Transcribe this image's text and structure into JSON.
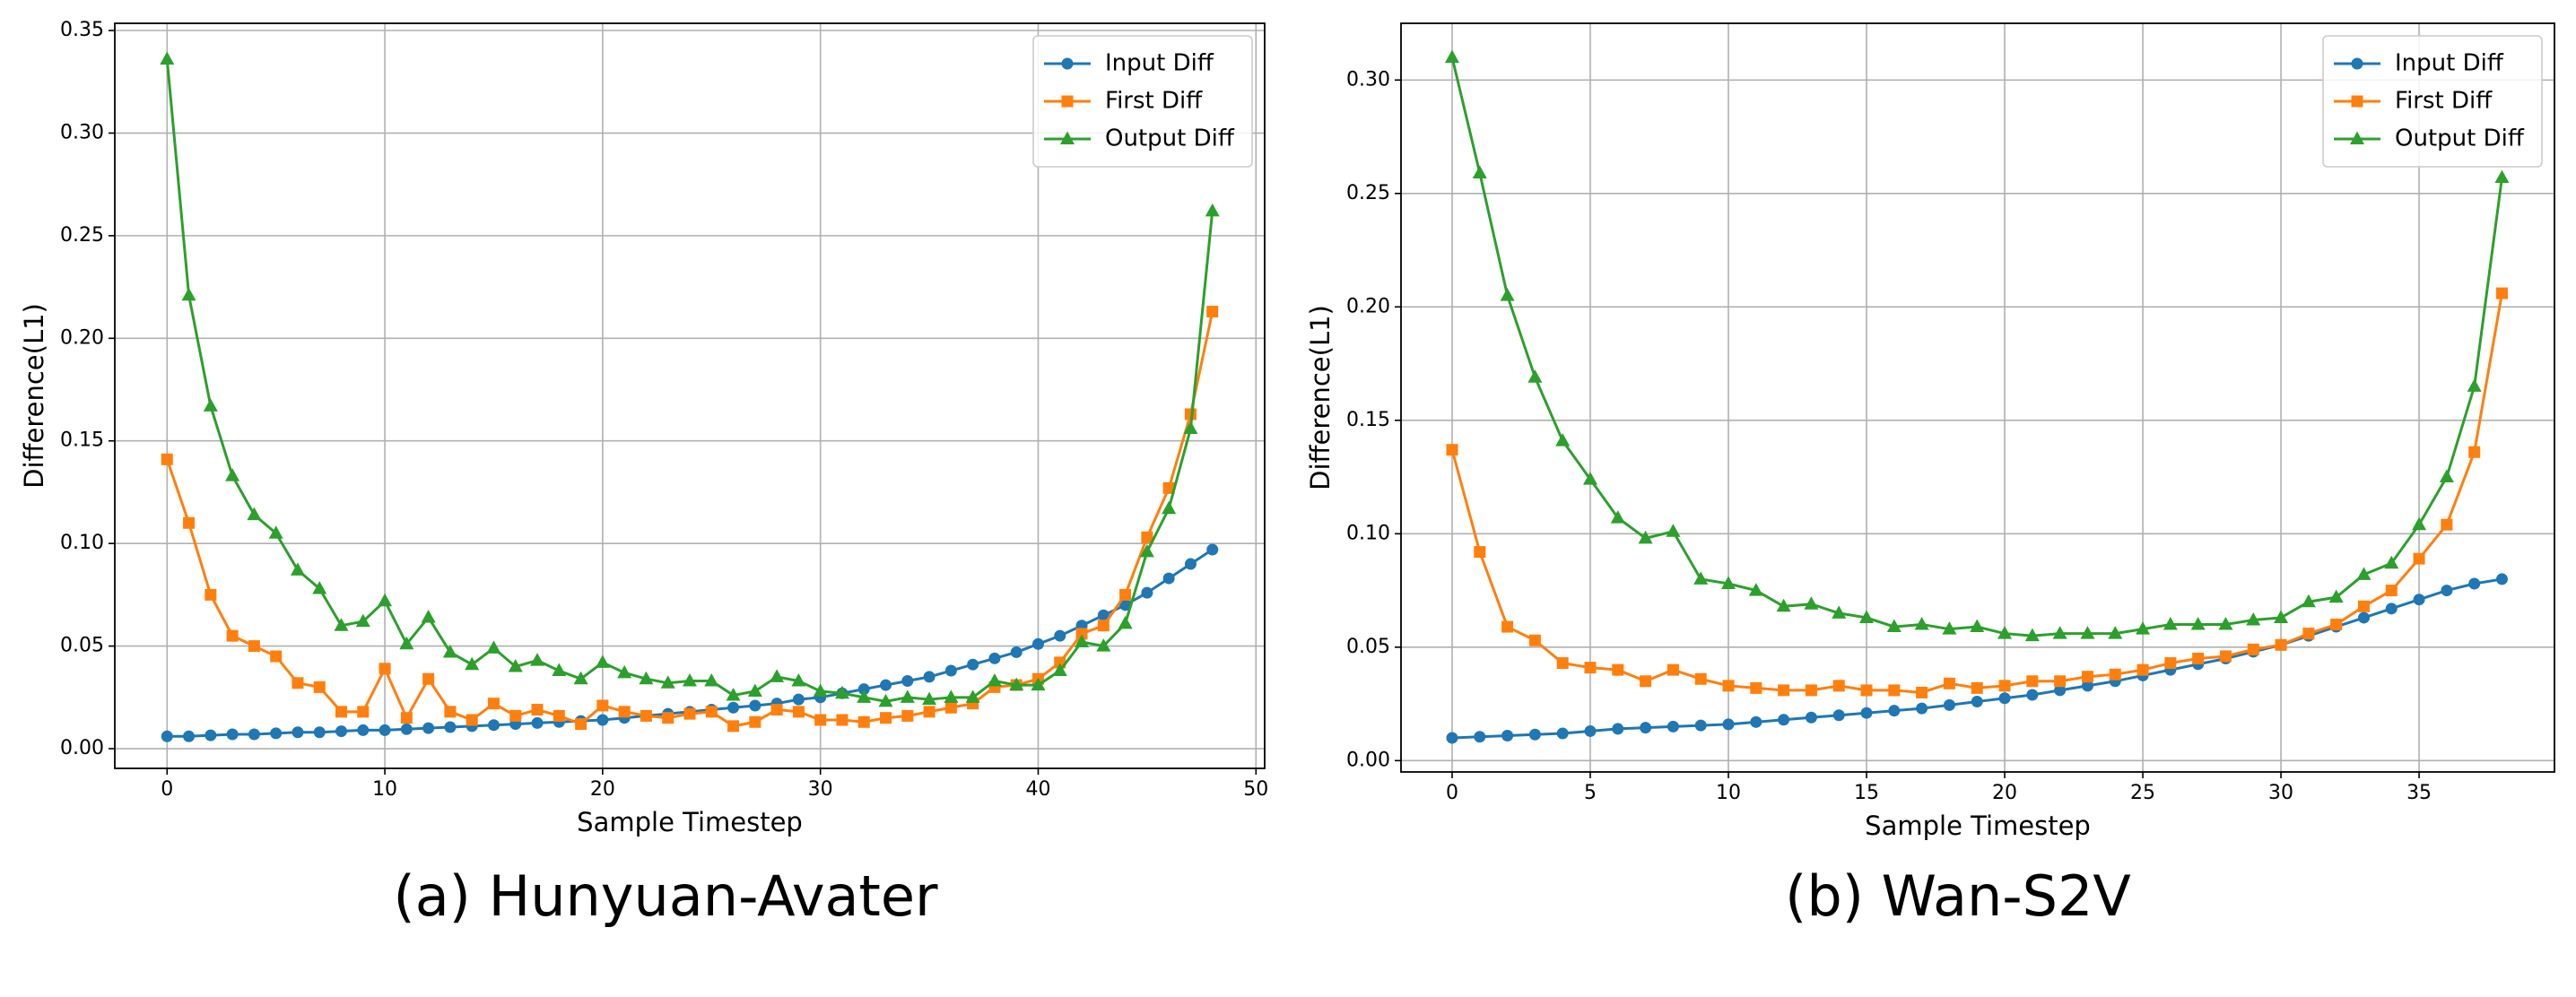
{
  "chart_data": [
    {
      "type": "line",
      "caption": "(a) Hunyuan-Avater",
      "xlabel": "Sample Timestep",
      "ylabel": "Difference(L1)",
      "x": [
        0,
        1,
        2,
        3,
        4,
        5,
        6,
        7,
        8,
        9,
        10,
        11,
        12,
        13,
        14,
        15,
        16,
        17,
        18,
        19,
        20,
        21,
        22,
        23,
        24,
        25,
        26,
        27,
        28,
        29,
        30,
        31,
        32,
        33,
        34,
        35,
        36,
        37,
        38,
        39,
        40,
        41,
        42,
        43,
        44,
        45,
        46,
        47,
        48
      ],
      "series": [
        {
          "name": "Input Diff",
          "color": "#1f77b4",
          "marker": "circle",
          "values": [
            0.006,
            0.006,
            0.0065,
            0.007,
            0.007,
            0.0075,
            0.008,
            0.008,
            0.0085,
            0.009,
            0.009,
            0.0095,
            0.01,
            0.0105,
            0.011,
            0.0115,
            0.012,
            0.0125,
            0.013,
            0.0135,
            0.014,
            0.015,
            0.016,
            0.017,
            0.018,
            0.019,
            0.02,
            0.021,
            0.022,
            0.024,
            0.025,
            0.027,
            0.029,
            0.031,
            0.033,
            0.035,
            0.038,
            0.041,
            0.044,
            0.047,
            0.051,
            0.055,
            0.06,
            0.065,
            0.07,
            0.076,
            0.083,
            0.09,
            0.097
          ]
        },
        {
          "name": "First Diff",
          "color": "#ff7f0e",
          "marker": "square",
          "values": [
            0.141,
            0.11,
            0.075,
            0.055,
            0.05,
            0.045,
            0.032,
            0.03,
            0.018,
            0.018,
            0.039,
            0.015,
            0.034,
            0.018,
            0.014,
            0.022,
            0.016,
            0.019,
            0.016,
            0.012,
            0.021,
            0.018,
            0.016,
            0.015,
            0.017,
            0.018,
            0.011,
            0.013,
            0.019,
            0.018,
            0.014,
            0.014,
            0.013,
            0.015,
            0.016,
            0.018,
            0.02,
            0.022,
            0.03,
            0.031,
            0.034,
            0.042,
            0.056,
            0.06,
            0.075,
            0.103,
            0.127,
            0.163,
            0.213
          ]
        },
        {
          "name": "Output Diff",
          "color": "#2ca02c",
          "marker": "triangle",
          "values": [
            0.336,
            0.221,
            0.167,
            0.133,
            0.114,
            0.105,
            0.087,
            0.078,
            0.06,
            0.062,
            0.072,
            0.051,
            0.064,
            0.047,
            0.041,
            0.049,
            0.04,
            0.043,
            0.038,
            0.034,
            0.042,
            0.037,
            0.034,
            0.032,
            0.033,
            0.033,
            0.026,
            0.028,
            0.035,
            0.033,
            0.028,
            0.027,
            0.025,
            0.023,
            0.025,
            0.024,
            0.025,
            0.025,
            0.033,
            0.031,
            0.031,
            0.038,
            0.052,
            0.05,
            0.061,
            0.096,
            0.117,
            0.156,
            0.262
          ]
        }
      ],
      "xlim": [
        -2.4,
        50.4
      ],
      "ylim": [
        -0.0096,
        0.3535
      ],
      "xticks": [
        0,
        10,
        20,
        30,
        40,
        50
      ],
      "yticks": [
        {
          "value": 0,
          "label": "0.00"
        },
        {
          "value": 0.05,
          "label": "0.05"
        },
        {
          "value": 0.1,
          "label": "0.10"
        },
        {
          "value": 0.15,
          "label": "0.15"
        },
        {
          "value": 0.2,
          "label": "0.20"
        },
        {
          "value": 0.25,
          "label": "0.25"
        },
        {
          "value": 0.3,
          "label": "0.30"
        },
        {
          "value": 0.35,
          "label": "0.35"
        }
      ],
      "grid": true,
      "legend": "upper right"
    },
    {
      "type": "line",
      "caption": "(b) Wan-S2V",
      "xlabel": "Sample Timestep",
      "ylabel": "Difference(L1)",
      "x": [
        0,
        1,
        2,
        3,
        4,
        5,
        6,
        7,
        8,
        9,
        10,
        11,
        12,
        13,
        14,
        15,
        16,
        17,
        18,
        19,
        20,
        21,
        22,
        23,
        24,
        25,
        26,
        27,
        28,
        29,
        30,
        31,
        32,
        33,
        34,
        35,
        36,
        37,
        38
      ],
      "series": [
        {
          "name": "Input Diff",
          "color": "#1f77b4",
          "marker": "circle",
          "values": [
            0.01,
            0.0105,
            0.011,
            0.0115,
            0.012,
            0.013,
            0.014,
            0.0145,
            0.015,
            0.0155,
            0.016,
            0.017,
            0.018,
            0.019,
            0.02,
            0.021,
            0.022,
            0.023,
            0.0245,
            0.026,
            0.0275,
            0.029,
            0.031,
            0.033,
            0.035,
            0.0375,
            0.04,
            0.0425,
            0.045,
            0.048,
            0.051,
            0.055,
            0.059,
            0.063,
            0.067,
            0.071,
            0.075,
            0.078,
            0.08
          ]
        },
        {
          "name": "First Diff",
          "color": "#ff7f0e",
          "marker": "square",
          "values": [
            0.137,
            0.092,
            0.059,
            0.053,
            0.043,
            0.041,
            0.04,
            0.035,
            0.04,
            0.036,
            0.033,
            0.032,
            0.031,
            0.031,
            0.033,
            0.031,
            0.031,
            0.03,
            0.034,
            0.032,
            0.033,
            0.035,
            0.035,
            0.037,
            0.038,
            0.04,
            0.043,
            0.045,
            0.046,
            0.049,
            0.051,
            0.056,
            0.06,
            0.068,
            0.075,
            0.089,
            0.104,
            0.136,
            0.206
          ]
        },
        {
          "name": "Output Diff",
          "color": "#2ca02c",
          "marker": "triangle",
          "values": [
            0.31,
            0.259,
            0.205,
            0.169,
            0.141,
            0.124,
            0.107,
            0.098,
            0.101,
            0.08,
            0.078,
            0.075,
            0.068,
            0.069,
            0.065,
            0.063,
            0.059,
            0.06,
            0.058,
            0.059,
            0.056,
            0.055,
            0.056,
            0.056,
            0.056,
            0.058,
            0.06,
            0.06,
            0.06,
            0.062,
            0.063,
            0.07,
            0.072,
            0.082,
            0.087,
            0.104,
            0.125,
            0.165,
            0.257
          ]
        }
      ],
      "xlim": [
        -1.85,
        39.9
      ],
      "ylim": [
        -0.005,
        0.325
      ],
      "xticks": [
        0,
        5,
        10,
        15,
        20,
        25,
        30,
        35
      ],
      "yticks": [
        {
          "value": 0,
          "label": "0.00"
        },
        {
          "value": 0.05,
          "label": "0.05"
        },
        {
          "value": 0.1,
          "label": "0.10"
        },
        {
          "value": 0.15,
          "label": "0.15"
        },
        {
          "value": 0.2,
          "label": "0.20"
        },
        {
          "value": 0.25,
          "label": "0.25"
        },
        {
          "value": 0.3,
          "label": "0.30"
        }
      ],
      "grid": true,
      "legend": "upper right"
    }
  ]
}
